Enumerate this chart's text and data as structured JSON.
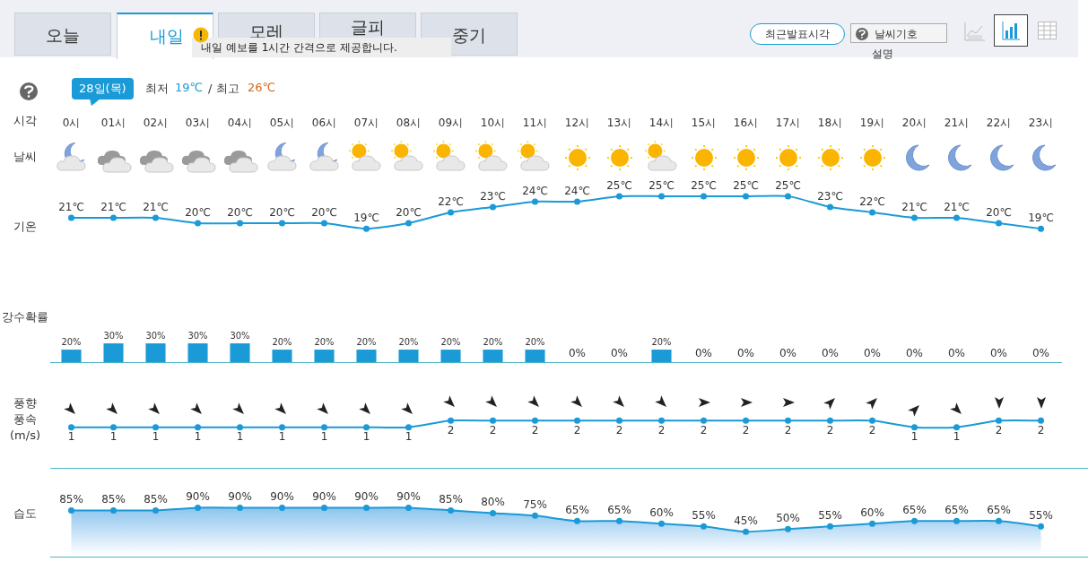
{
  "chart_data": [
    {
      "type": "other",
      "annotations": [
        "오늘",
        "내일",
        "모레",
        "글피",
        "중기",
        "내일 예보를 1시간 간격으로 제공합니다.",
        "최근발표시각",
        "날씨기호",
        "설명",
        "28일(목)",
        "최저",
        "19℃",
        "/ 최고",
        "26℃"
      ]
    },
    {
      "type": "line",
      "xlabel": "시각",
      "ylabel": "기온",
      "annotations": [
        "날씨"
      ],
      "tick_labels": "x",
      "marker": "circle",
      "color": "#1a9ad6",
      "categories": [
        "0시",
        "01시",
        "02시",
        "03시",
        "04시",
        "05시",
        "06시",
        "07시",
        "08시",
        "09시",
        "10시",
        "11시",
        "12시",
        "13시",
        "14시",
        "15시",
        "16시",
        "17시",
        "18시",
        "19시",
        "20시",
        "21시",
        "22시",
        "23시"
      ],
      "values": [
        21,
        21,
        21,
        20,
        20,
        20,
        20,
        19,
        20,
        22,
        23,
        24,
        24,
        25,
        25,
        25,
        25,
        25,
        23,
        22,
        21,
        21,
        20,
        19
      ],
      "value_labels": [
        "21℃",
        "21℃",
        "21℃",
        "20℃",
        "20℃",
        "20℃",
        "20℃",
        "19℃",
        "20℃",
        "22℃",
        "23℃",
        "24℃",
        "24℃",
        "25℃",
        "25℃",
        "25℃",
        "25℃",
        "25℃",
        "23℃",
        "22℃",
        "21℃",
        "21℃",
        "20℃",
        "19℃"
      ]
    },
    {
      "type": "bar",
      "ylabel": "강수확률",
      "tick_labels": false,
      "color": "#1a9ad6",
      "categories": [
        null,
        null,
        null,
        null,
        null,
        null,
        null,
        null,
        null,
        null,
        null,
        null,
        null,
        null,
        null,
        null,
        null,
        null,
        null,
        null,
        null,
        null,
        null,
        null
      ],
      "values": [
        20,
        30,
        30,
        30,
        30,
        20,
        20,
        20,
        20,
        20,
        20,
        20,
        0,
        0,
        20,
        0,
        0,
        0,
        0,
        0,
        0,
        0,
        0,
        0
      ],
      "value_labels": [
        "20%",
        "30%",
        "30%",
        "30%",
        "30%",
        "20%",
        "20%",
        "20%",
        "20%",
        "20%",
        "20%",
        "20%",
        "0%",
        "0%",
        "20%",
        "0%",
        "0%",
        "0%",
        "0%",
        "0%",
        "0%",
        "0%",
        "0%",
        "0%"
      ]
    },
    {
      "type": "line",
      "ylabel": "풍향\n풍속\n(m/s)",
      "tick_labels": false,
      "marker": "circle",
      "data_labels": true,
      "color": "#1a9ad6",
      "categories": [
        null,
        null,
        null,
        null,
        null,
        null,
        null,
        null,
        null,
        null,
        null,
        null,
        null,
        null,
        null,
        null,
        null,
        null,
        null,
        null,
        null,
        null,
        null,
        null
      ],
      "values": [
        1,
        1,
        1,
        1,
        1,
        1,
        1,
        1,
        1,
        2,
        2,
        2,
        2,
        2,
        2,
        2,
        2,
        2,
        2,
        2,
        1,
        1,
        2,
        2
      ]
    },
    {
      "type": "area",
      "ylabel": "습도",
      "tick_labels": false,
      "marker": "circle",
      "color": "#1a9ad6",
      "categories": [
        null,
        null,
        null,
        null,
        null,
        null,
        null,
        null,
        null,
        null,
        null,
        null,
        null,
        null,
        null,
        null,
        null,
        null,
        null,
        null,
        null,
        null,
        null,
        null
      ],
      "values": [
        85,
        85,
        85,
        90,
        90,
        90,
        90,
        90,
        90,
        85,
        80,
        75,
        65,
        65,
        60,
        55,
        45,
        50,
        55,
        60,
        65,
        65,
        65,
        55
      ],
      "value_labels": [
        "85%",
        "85%",
        "85%",
        "90%",
        "90%",
        "90%",
        "90%",
        "90%",
        "90%",
        "85%",
        "80%",
        "75%",
        "65%",
        "65%",
        "60%",
        "55%",
        "45%",
        "50%",
        "55%",
        "60%",
        "65%",
        "65%",
        "65%",
        "55%"
      ]
    }
  ]
}
